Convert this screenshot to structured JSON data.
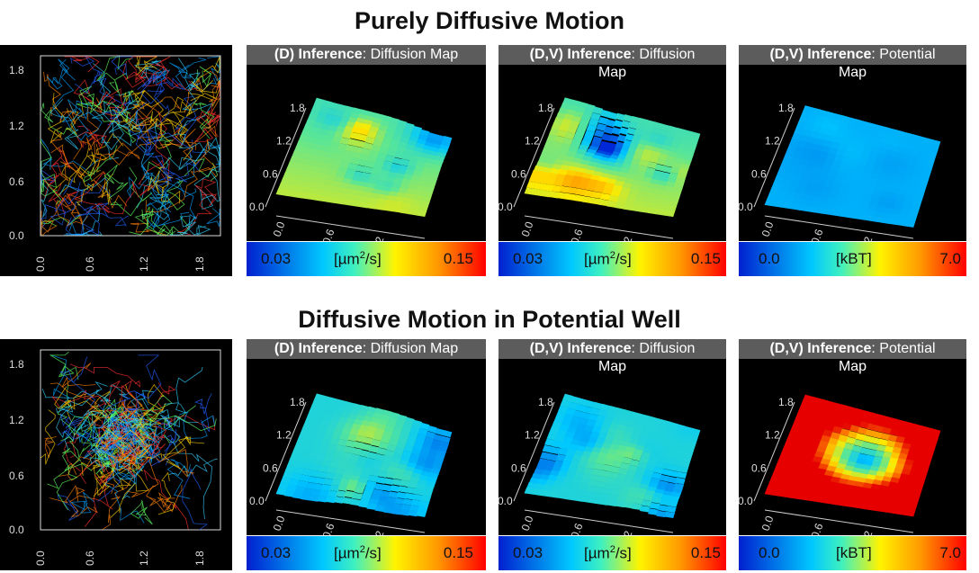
{
  "sections": [
    {
      "title": "Purely Diffusive Motion",
      "trajectory": {
        "y_ticks": [
          "1.8",
          "1.2",
          "0.6",
          "0.0"
        ],
        "x_ticks": [
          "0.0",
          "0.6",
          "1.2",
          "1.8"
        ]
      },
      "maps": [
        {
          "header_bold": "(D) Inference",
          "header_rest": ": Diffusion Map",
          "sub": "",
          "surface": "diffusion-uniform",
          "colorbar": {
            "min": "0.03",
            "unit": "[µm²/s]",
            "max": "0.15",
            "colors": [
              "#0028d8",
              "#00ccff",
              "#fff000",
              "#ff0000"
            ]
          }
        },
        {
          "header_bold": "(D,V) Inference",
          "header_rest": ": Diffusion",
          "sub": "Map",
          "surface": "diffusion-uniform",
          "colorbar": {
            "min": "0.03",
            "unit": "[µm²/s]",
            "max": "0.15",
            "colors": [
              "#0028d8",
              "#00ccff",
              "#fff000",
              "#ff0000"
            ]
          }
        },
        {
          "header_bold": "(D,V) Inference",
          "header_rest": ": Potential",
          "sub": "Map",
          "surface": "potential-flat",
          "colorbar": {
            "min": "0.0",
            "unit": "[kBT]",
            "max": "7.0",
            "colors": [
              "#0028d8",
              "#00ccff",
              "#fff000",
              "#ff0000"
            ]
          }
        }
      ]
    },
    {
      "title": "Diffusive Motion in Potential Well",
      "trajectory": {
        "y_ticks": [
          "1.8",
          "1.2",
          "0.6",
          "0.0"
        ],
        "x_ticks": [
          "0.0",
          "0.6",
          "1.2",
          "1.8"
        ]
      },
      "maps": [
        {
          "header_bold": "(D) Inference",
          "header_rest": ": Diffusion Map",
          "sub": "",
          "surface": "diffusion-well",
          "colorbar": {
            "min": "0.03",
            "unit": "[µm²/s]",
            "max": "0.15",
            "colors": [
              "#0028d8",
              "#00ccff",
              "#fff000",
              "#ff0000"
            ]
          }
        },
        {
          "header_bold": "(D,V) Inference",
          "header_rest": ": Diffusion",
          "sub": "Map",
          "surface": "diffusion-well",
          "colorbar": {
            "min": "0.03",
            "unit": "[µm²/s]",
            "max": "0.15",
            "colors": [
              "#0028d8",
              "#00ccff",
              "#fff000",
              "#ff0000"
            ]
          }
        },
        {
          "header_bold": "(D,V) Inference",
          "header_rest": ": Potential",
          "sub": "Map",
          "surface": "potential-well",
          "colorbar": {
            "min": "0.0",
            "unit": "[kBT]",
            "max": "7.0",
            "colors": [
              "#0028d8",
              "#00ccff",
              "#fff000",
              "#ff0000"
            ]
          }
        }
      ]
    }
  ],
  "surface_ticks": [
    "0.0",
    "0.6",
    "1.2",
    "1.8"
  ]
}
